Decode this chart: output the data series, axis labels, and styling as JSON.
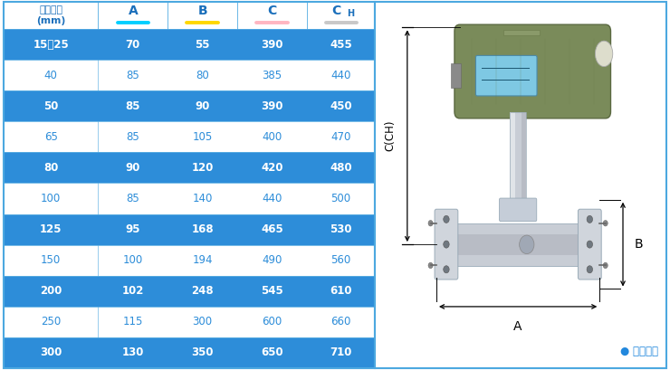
{
  "header_col": "仪表口径\n(mm)",
  "headers": [
    "A",
    "B",
    "C",
    "CH"
  ],
  "header_underline_colors": [
    "#00CFFF",
    "#FFD700",
    "#FFB6C1",
    "#C8C8C8"
  ],
  "rows": [
    [
      "15～25",
      "70",
      "55",
      "390",
      "455"
    ],
    [
      "40",
      "85",
      "80",
      "385",
      "440"
    ],
    [
      "50",
      "85",
      "90",
      "390",
      "450"
    ],
    [
      "65",
      "85",
      "105",
      "400",
      "470"
    ],
    [
      "80",
      "90",
      "120",
      "420",
      "480"
    ],
    [
      "100",
      "85",
      "140",
      "440",
      "500"
    ],
    [
      "125",
      "95",
      "168",
      "465",
      "530"
    ],
    [
      "150",
      "100",
      "194",
      "490",
      "560"
    ],
    [
      "200",
      "102",
      "248",
      "545",
      "610"
    ],
    [
      "250",
      "115",
      "300",
      "600",
      "660"
    ],
    [
      "300",
      "130",
      "350",
      "650",
      "710"
    ]
  ],
  "blue_rows": [
    0,
    2,
    4,
    6,
    8,
    10
  ],
  "white_rows": [
    1,
    3,
    5,
    7,
    9
  ],
  "col_blue": "#2179C8",
  "row_blue": "#2D8DD9",
  "header_bg": "#FFFFFF",
  "header_left_bg": "#FFFFFF",
  "text_blue_dark": "#1A6FBB",
  "text_blue_row": "#2D8DD9",
  "text_white": "#FFFFFF",
  "border_blue": "#4CA8E0",
  "caption_color": "#2288DD",
  "caption": "常规仪表"
}
